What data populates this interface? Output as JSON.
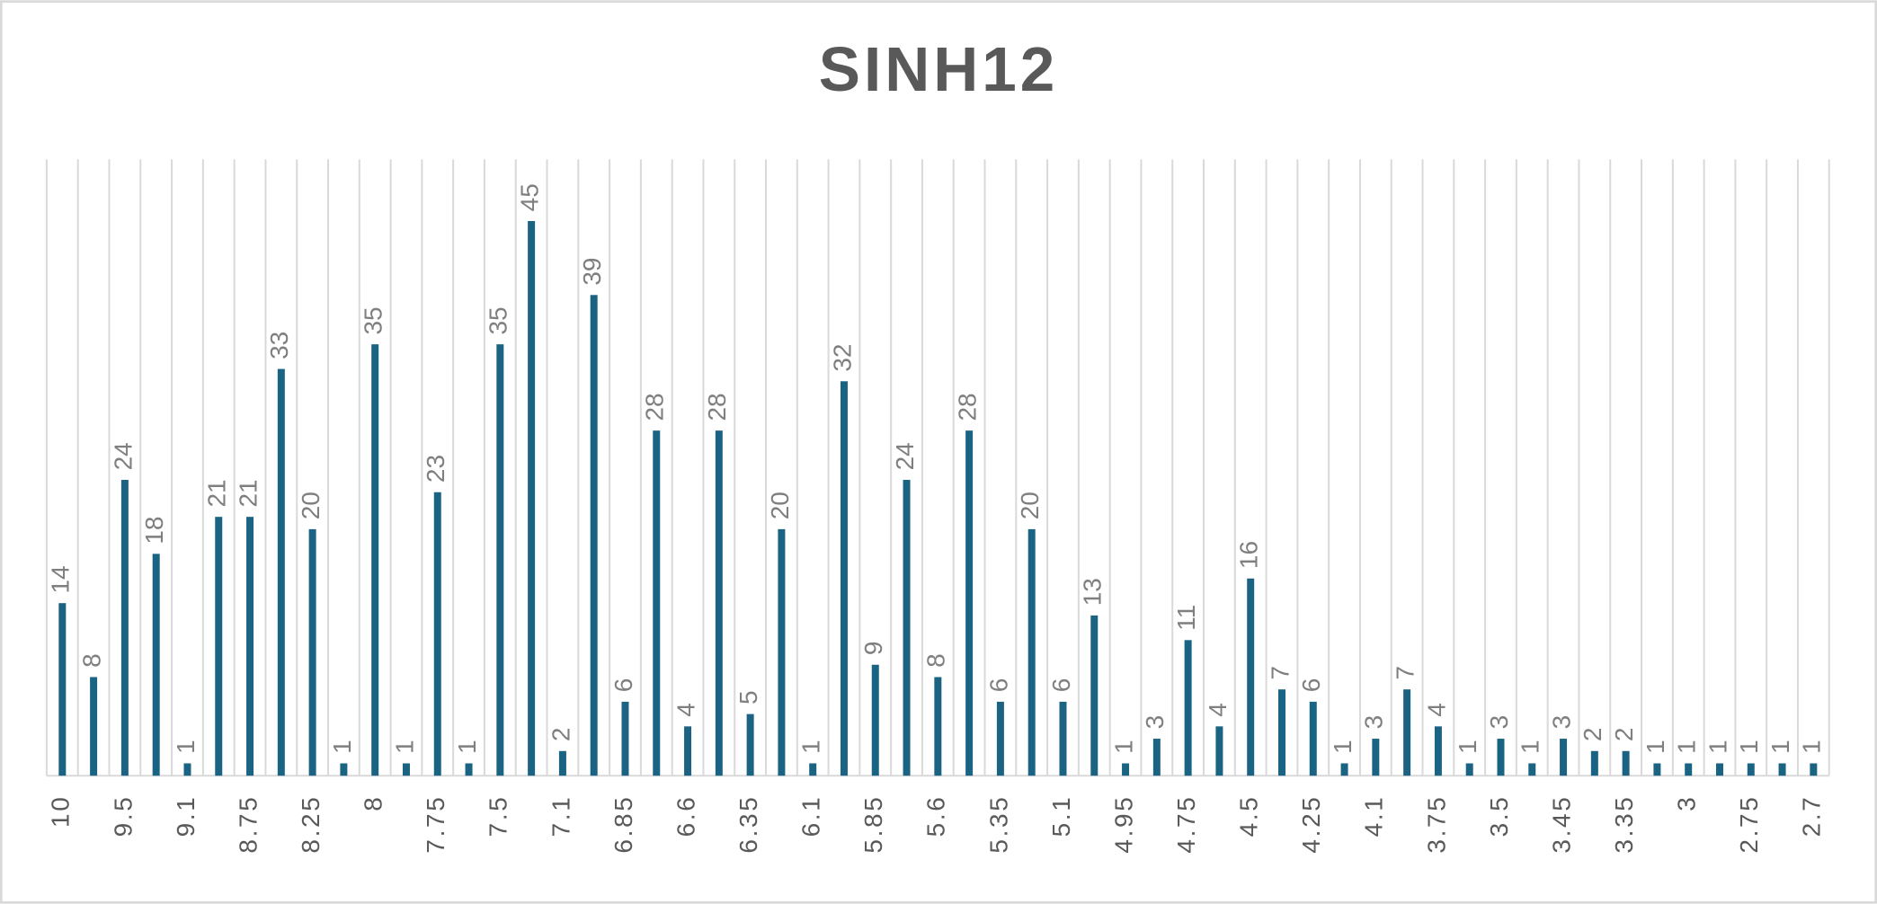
{
  "chart_data": {
    "type": "bar",
    "title": "SINH12",
    "categories": [
      "10",
      null,
      "9.5",
      null,
      "9.1",
      null,
      "8.75",
      null,
      "8.25",
      null,
      "8",
      null,
      "7.75",
      null,
      "7.5",
      null,
      "7.1",
      null,
      "6.85",
      null,
      "6.6",
      null,
      "6.35",
      null,
      "6.1",
      null,
      "5.85",
      null,
      "5.6",
      null,
      "5.35",
      null,
      "5.1",
      null,
      "4.95",
      null,
      "4.75",
      null,
      "4.5",
      null,
      "4.25",
      null,
      "4.1",
      null,
      "3.75",
      null,
      "3.5",
      null,
      "3.45",
      null,
      "3.35",
      null,
      "3",
      null,
      "2.75",
      null,
      "2.7"
    ],
    "values": [
      14,
      8,
      24,
      18,
      1,
      21,
      21,
      33,
      20,
      1,
      35,
      1,
      23,
      1,
      35,
      45,
      2,
      39,
      6,
      28,
      4,
      28,
      5,
      20,
      1,
      32,
      9,
      24,
      8,
      28,
      6,
      20,
      6,
      13,
      1,
      3,
      11,
      4,
      16,
      7,
      6,
      1,
      3,
      7,
      4,
      1,
      3,
      1,
      3,
      2,
      2,
      1,
      1,
      1,
      1,
      1,
      1
    ],
    "color": "#1b6383",
    "ylim": [
      0,
      50
    ],
    "grid": true
  }
}
